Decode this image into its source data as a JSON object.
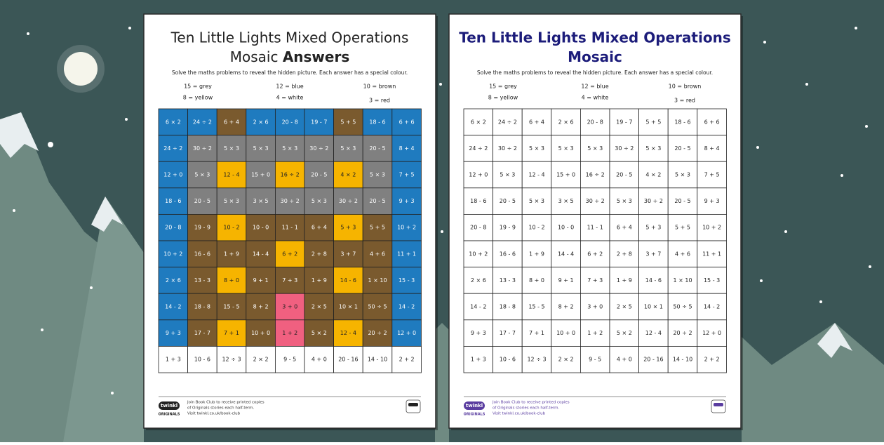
{
  "instruction": "Solve the maths problems to reveal the hidden picture. Each answer has a special colour.",
  "legend": [
    "15 = grey",
    "12 = blue",
    "10 = brown",
    "8 = yellow",
    "4 = white",
    "3 = red"
  ],
  "sheets": [
    {
      "title_line1": "Ten Little Lights Mixed Operations",
      "title_line2": "Mosaic",
      "title_bold": "Answers",
      "title_color": "#222222",
      "colored": true
    },
    {
      "title_line1": "Ten Little Lights Mixed Operations",
      "title_line2": "Mosaic",
      "title_color": "#1c1c7a",
      "colored": false
    }
  ],
  "grid": {
    "rows": [
      [
        "6 × 2",
        "24 ÷ 2",
        "6 + 4",
        "2 × 6",
        "20 - 8",
        "19 - 7",
        "5 + 5",
        "18 - 6",
        "6 + 6"
      ],
      [
        "24 ÷ 2",
        "30 ÷ 2",
        "5 × 3",
        "5 × 3",
        "5 × 3",
        "30 ÷ 2",
        "5 × 3",
        "20 - 5",
        "8 + 4"
      ],
      [
        "12 + 0",
        "5 × 3",
        "12 - 4",
        "15 + 0",
        "16 ÷ 2",
        "20 - 5",
        "4 × 2",
        "5 × 3",
        "7 + 5"
      ],
      [
        "18 - 6",
        "20 - 5",
        "5 × 3",
        "3 × 5",
        "30 ÷ 2",
        "5 × 3",
        "30 ÷ 2",
        "20 - 5",
        "9 + 3"
      ],
      [
        "20 - 8",
        "19 - 9",
        "10 - 2",
        "10 - 0",
        "11 - 1",
        "6 + 4",
        "5 + 3",
        "5 + 5",
        "10 + 2"
      ],
      [
        "10 + 2",
        "16 - 6",
        "1 + 9",
        "14 - 4",
        "6 + 2",
        "2 + 8",
        "3 + 7",
        "4 + 6",
        "11 + 1"
      ],
      [
        "2 × 6",
        "13 - 3",
        "8 + 0",
        "9 + 1",
        "7 + 3",
        "1 + 9",
        "14 - 6",
        "1 × 10",
        "15 - 3"
      ],
      [
        "14 - 2",
        "18 - 8",
        "15 - 5",
        "8 + 2",
        "3 + 0",
        "2 × 5",
        "10 × 1",
        "50 ÷ 5",
        "14 - 2"
      ],
      [
        "9 + 3",
        "17 - 7",
        "7 + 1",
        "10 + 0",
        "1 + 2",
        "5 × 2",
        "12 - 4",
        "20 ÷ 2",
        "12 + 0"
      ],
      [
        "1 + 3",
        "10 - 6",
        "12 ÷ 3",
        "2 × 2",
        "9 - 5",
        "4 + 0",
        "20 - 16",
        "14 - 10",
        "2 + 2"
      ]
    ],
    "cell_colors": [
      [
        "#1f7bbf",
        "#1f7bbf",
        "#7a5a2e",
        "#1f7bbf",
        "#1f7bbf",
        "#1f7bbf",
        "#7a5a2e",
        "#1f7bbf",
        "#1f7bbf"
      ],
      [
        "#1f7bbf",
        "#808080",
        "#808080",
        "#808080",
        "#808080",
        "#808080",
        "#808080",
        "#808080",
        "#1f7bbf"
      ],
      [
        "#1f7bbf",
        "#808080",
        "#f6b400",
        "#808080",
        "#f6b400",
        "#808080",
        "#f6b400",
        "#808080",
        "#1f7bbf"
      ],
      [
        "#1f7bbf",
        "#808080",
        "#808080",
        "#808080",
        "#808080",
        "#808080",
        "#808080",
        "#808080",
        "#1f7bbf"
      ],
      [
        "#1f7bbf",
        "#7a5a2e",
        "#f6b400",
        "#7a5a2e",
        "#7a5a2e",
        "#7a5a2e",
        "#f6b400",
        "#7a5a2e",
        "#1f7bbf"
      ],
      [
        "#1f7bbf",
        "#7a5a2e",
        "#7a5a2e",
        "#7a5a2e",
        "#f6b400",
        "#7a5a2e",
        "#7a5a2e",
        "#7a5a2e",
        "#1f7bbf"
      ],
      [
        "#1f7bbf",
        "#7a5a2e",
        "#f6b400",
        "#7a5a2e",
        "#7a5a2e",
        "#7a5a2e",
        "#f6b400",
        "#7a5a2e",
        "#1f7bbf"
      ],
      [
        "#1f7bbf",
        "#7a5a2e",
        "#7a5a2e",
        "#7a5a2e",
        "#f06080",
        "#7a5a2e",
        "#7a5a2e",
        "#7a5a2e",
        "#1f7bbf"
      ],
      [
        "#1f7bbf",
        "#7a5a2e",
        "#f6b400",
        "#7a5a2e",
        "#f06080",
        "#7a5a2e",
        "#f6b400",
        "#7a5a2e",
        "#1f7bbf"
      ],
      [
        "#ffffff",
        "#ffffff",
        "#ffffff",
        "#ffffff",
        "#ffffff",
        "#ffffff",
        "#ffffff",
        "#ffffff",
        "#ffffff"
      ]
    ]
  },
  "footer": {
    "lines": [
      "Join Book Club to receive printed copies",
      "of Originals stories each half-term.",
      "Visit twinkl.co.uk/book-club"
    ],
    "logo": "twinkl",
    "logo_sub": "ORIGINALS"
  }
}
